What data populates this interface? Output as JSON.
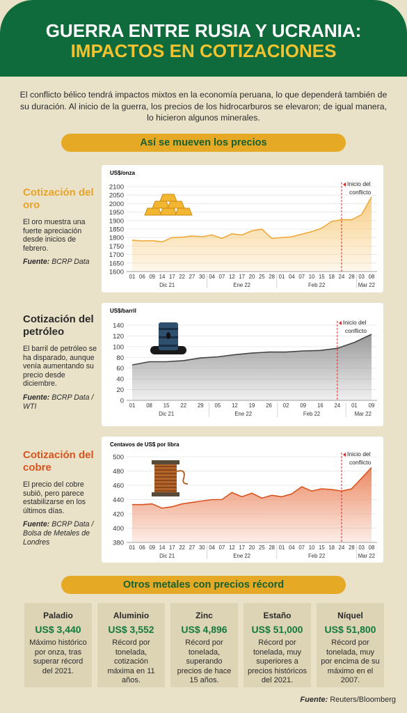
{
  "header": {
    "title": "GUERRA ENTRE RUSIA Y UCRANIA:",
    "subtitle": "IMPACTOS EN COTIZACIONES"
  },
  "intro": "El conflicto bélico tendrá impactos mixtos en la economía peruana, lo que dependerá también de su duración. Al inicio de la guerra, los precios de los hidrocarburos se elevaron; de igual manera, lo hicieron algunos minerales.",
  "section_title": "Así se mueven los precios",
  "chart_data": [
    {
      "type": "area",
      "title": "Cotización del oro",
      "title_color": "#e9a328",
      "description": "El oro muestra una fuerte apreciación desde inicios de febrero.",
      "source_label": "Fuente:",
      "source": "BCRP Data",
      "y_label": "US$/onza",
      "color": "#f0a93a",
      "fill": "#f8cf86",
      "grid": true,
      "ylim": [
        1600,
        2100
      ],
      "yticks": [
        1600,
        1650,
        1700,
        1750,
        1800,
        1850,
        1900,
        1950,
        2000,
        2050,
        2100
      ],
      "groups": [
        {
          "label": "Dic 21",
          "x": [
            "01",
            "06",
            "09",
            "14",
            "17",
            "22",
            "27",
            "30"
          ],
          "values": [
            1785,
            1780,
            1782,
            1775,
            1800,
            1802,
            1810,
            1805
          ]
        },
        {
          "label": "Ene 22",
          "x": [
            "04",
            "07",
            "12",
            "17",
            "20",
            "25",
            "28"
          ],
          "values": [
            1815,
            1795,
            1822,
            1815,
            1840,
            1850,
            1795
          ]
        },
        {
          "label": "Feb 22",
          "x": [
            "01",
            "04",
            "07",
            "10",
            "15",
            "18",
            "24",
            "28"
          ],
          "values": [
            1800,
            1805,
            1820,
            1835,
            1855,
            1895,
            1905,
            1905
          ]
        },
        {
          "label": "Mar 22",
          "x": [
            "03",
            "08"
          ],
          "values": [
            1935,
            2040
          ]
        }
      ],
      "annotation": {
        "lines": [
          "Inicio del",
          "conflicto"
        ],
        "month": "Feb 22",
        "day": "24"
      }
    },
    {
      "type": "area",
      "title": "Cotización del petróleo",
      "title_color": "#2a2a2a",
      "description": "El barril de petróleo se ha disparado, aunque venía aumentando su precio desde diciembre.",
      "source_label": "Fuente:",
      "source": "BCRP Data / WTI",
      "y_label": "US$/barril",
      "color": "#444444",
      "fill": "#9a9a9a",
      "grid": true,
      "ylim": [
        0,
        140
      ],
      "yticks": [
        0,
        20,
        40,
        60,
        80,
        100,
        120,
        140
      ],
      "groups": [
        {
          "label": "Dic 21",
          "x": [
            "01",
            "08",
            "15",
            "22",
            "29"
          ],
          "values": [
            66,
            72,
            72,
            74,
            79
          ]
        },
        {
          "label": "Ene 22",
          "x": [
            "05",
            "12",
            "19",
            "26"
          ],
          "values": [
            81,
            85,
            88,
            90
          ]
        },
        {
          "label": "Feb 22",
          "x": [
            "02",
            "09",
            "16",
            "24"
          ],
          "values": [
            90,
            92,
            93,
            97
          ]
        },
        {
          "label": "Mar 22",
          "x": [
            "01",
            "09"
          ],
          "values": [
            108,
            123
          ]
        }
      ],
      "annotation": {
        "lines": [
          "Inicio del",
          "conflicto"
        ],
        "month": "Feb 22",
        "day": "24"
      }
    },
    {
      "type": "area",
      "title": "Cotización del cobre",
      "title_color": "#d9531e",
      "description": "El precio del cobre subió, pero parece estabilizarse en los últimos días.",
      "source_label": "Fuente:",
      "source": "BCRP Data / Bolsa de Metales de Londres",
      "y_label": "Centavos de US$ por libra",
      "color": "#d9531e",
      "fill": "#ec8a64",
      "grid": true,
      "ylim": [
        380,
        500
      ],
      "yticks": [
        380,
        400,
        420,
        440,
        460,
        480,
        500
      ],
      "groups": [
        {
          "label": "Dic 21",
          "x": [
            "01",
            "06",
            "09",
            "14",
            "17",
            "22",
            "27",
            "30"
          ],
          "values": [
            433,
            433,
            434,
            428,
            430,
            434,
            436,
            438
          ]
        },
        {
          "label": "Ene 22",
          "x": [
            "04",
            "07",
            "12",
            "17",
            "20",
            "25",
            "28"
          ],
          "values": [
            440,
            440,
            450,
            444,
            449,
            442,
            446
          ]
        },
        {
          "label": "Feb 22",
          "x": [
            "01",
            "04",
            "07",
            "10",
            "15",
            "18",
            "24",
            "28"
          ],
          "values": [
            444,
            448,
            458,
            452,
            455,
            454,
            452,
            455
          ]
        },
        {
          "label": "Mar 22",
          "x": [
            "03",
            "08"
          ],
          "values": [
            470,
            485
          ]
        }
      ],
      "annotation": {
        "lines": [
          "Inicio del",
          "conflicto"
        ],
        "month": "Feb 22",
        "day": "24"
      }
    }
  ],
  "metals_title": "Otros metales con precios récord",
  "metals": [
    {
      "name": "Paladio",
      "price": "US$ 3,440",
      "description": "Máximo histórico por onza, tras superar récord del 2021."
    },
    {
      "name": "Aluminio",
      "price": "US$ 3,552",
      "description": "Récord por tonelada, cotización máxima en 11 años."
    },
    {
      "name": "Zinc",
      "price": "US$ 4,896",
      "description": "Récord por tonelada, superando precios de hace 15 años."
    },
    {
      "name": "Estaño",
      "price": "US$ 51,000",
      "description": "Récord por tonelada, muy superiores a precios históricos del 2021."
    },
    {
      "name": "Níquel",
      "price": "US$ 51,800",
      "description": "Récord por tonelada, muy por encima de su máximo en el 2007."
    }
  ],
  "footer": {
    "source_label": "Fuente:",
    "source": "Reuters/Bloomberg"
  }
}
